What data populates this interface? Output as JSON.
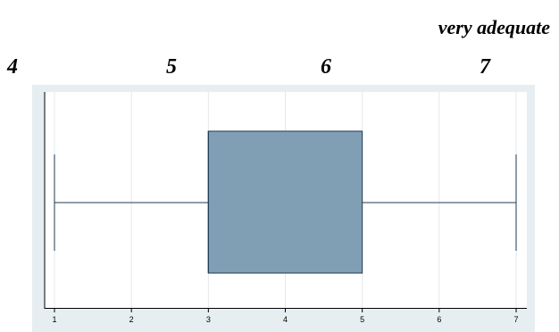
{
  "header": {
    "title": "very adequate",
    "scale_labels": [
      "4",
      "5",
      "6",
      "7"
    ]
  },
  "colors": {
    "plot_background": "#e6eef1",
    "box_fill": "#819fb4",
    "line": "#1f3a55",
    "grid": "#e3e8eb"
  },
  "chart_data": {
    "type": "box",
    "orientation": "horizontal",
    "title": "very adequate",
    "xlabel": "",
    "ylabel": "",
    "xlim": [
      1,
      7
    ],
    "xticks": [
      "1",
      "2",
      "3",
      "4",
      "5",
      "6",
      "7"
    ],
    "grid": true,
    "box": {
      "whisker_low": 1,
      "q1": 3,
      "median": 3,
      "q3": 5,
      "whisker_high": 7
    }
  }
}
